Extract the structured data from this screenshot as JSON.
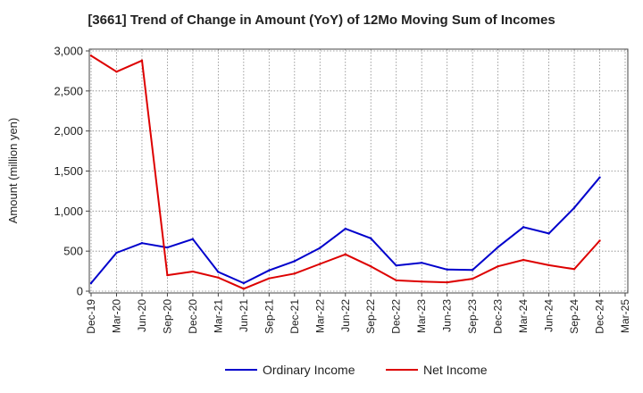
{
  "chart_data": {
    "type": "line",
    "title": "[3661]  Trend of Change in Amount (YoY) of 12Mo Moving Sum of Incomes",
    "ylabel": "Amount (million yen)",
    "xlabel": "",
    "ylim": [
      0,
      3000
    ],
    "yticks": [
      0,
      500,
      1000,
      1500,
      2000,
      2500,
      3000
    ],
    "ytick_labels": [
      "0",
      "500",
      "1,000",
      "1,500",
      "2,000",
      "2,500",
      "3,000"
    ],
    "categories": [
      "Dec-19",
      "Mar-20",
      "Jun-20",
      "Sep-20",
      "Dec-20",
      "Mar-21",
      "Jun-21",
      "Sep-21",
      "Dec-21",
      "Mar-22",
      "Jun-22",
      "Sep-22",
      "Dec-22",
      "Mar-23",
      "Jun-23",
      "Sep-23",
      "Dec-23",
      "Mar-24",
      "Jun-24",
      "Sep-24",
      "Dec-24",
      "Mar-25"
    ],
    "grid": true,
    "legend_position": "bottom",
    "series": [
      {
        "name": "Ordinary Income",
        "color": "#0000cc",
        "values": [
          100,
          480,
          600,
          545,
          650,
          240,
          100,
          260,
          375,
          540,
          780,
          660,
          320,
          355,
          270,
          265,
          550,
          800,
          720,
          1040,
          1420,
          null
        ]
      },
      {
        "name": "Net Income",
        "color": "#dd0000",
        "values": [
          2940,
          2740,
          2880,
          200,
          245,
          170,
          30,
          160,
          220,
          340,
          460,
          310,
          135,
          120,
          110,
          155,
          310,
          390,
          325,
          275,
          630,
          null
        ]
      }
    ]
  }
}
